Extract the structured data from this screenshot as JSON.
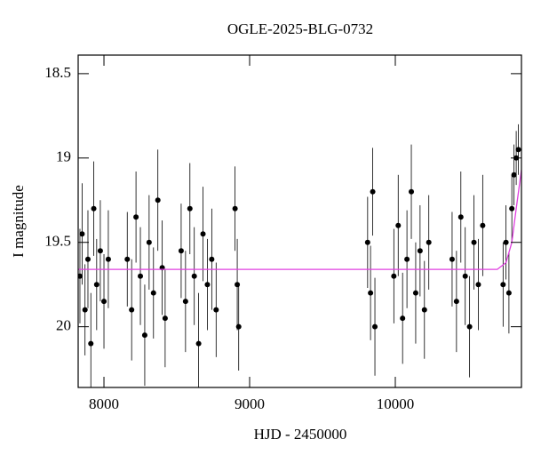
{
  "chart_data": {
    "type": "scatter",
    "title": "OGLE-2025-BLG-0732",
    "x_label": "HJD - 2450000",
    "y_label": "I magnitude",
    "xlim": [
      7823,
      10866
    ],
    "ylim": [
      20.36,
      18.39
    ],
    "xticks": [
      8000,
      9000,
      10000
    ],
    "yticks": [
      18.5,
      19,
      19.5,
      20
    ],
    "series": [
      {
        "type": "scatter",
        "color": "#000000",
        "x": [
          7835,
          7850,
          7870,
          7890,
          7910,
          7930,
          7950,
          7975,
          8000,
          8030,
          8160,
          8190,
          8220,
          8250,
          8280,
          8310,
          8340,
          8370,
          8400,
          8420,
          8530,
          8560,
          8590,
          8620,
          8650,
          8680,
          8710,
          8740,
          8770,
          8900,
          8915,
          8925,
          9810,
          9830,
          9845,
          9860,
          9990,
          10020,
          10050,
          10080,
          10110,
          10140,
          10170,
          10200,
          10230,
          10390,
          10420,
          10450,
          10480,
          10510,
          10540,
          10570,
          10600,
          10740,
          10760,
          10780,
          10800,
          10815,
          10830,
          10845
        ],
        "values": [
          19.7,
          19.45,
          19.9,
          19.6,
          20.1,
          19.3,
          19.75,
          19.55,
          19.85,
          19.6,
          19.6,
          19.9,
          19.35,
          19.7,
          20.05,
          19.5,
          19.8,
          19.25,
          19.65,
          19.95,
          19.55,
          19.85,
          19.3,
          19.7,
          20.1,
          19.45,
          19.75,
          19.6,
          19.9,
          19.3,
          19.75,
          20.0,
          19.5,
          19.8,
          19.2,
          20.0,
          19.7,
          19.4,
          19.95,
          19.6,
          19.2,
          19.8,
          19.55,
          19.9,
          19.5,
          19.6,
          19.85,
          19.35,
          19.7,
          20.0,
          19.5,
          19.75,
          19.4,
          19.75,
          19.5,
          19.8,
          19.3,
          19.1,
          19.0,
          18.95
        ],
        "errors": [
          0.28,
          0.3,
          0.27,
          0.29,
          0.3,
          0.28,
          0.27,
          0.3,
          0.28,
          0.29,
          0.28,
          0.3,
          0.27,
          0.29,
          0.3,
          0.28,
          0.27,
          0.3,
          0.28,
          0.29,
          0.28,
          0.3,
          0.27,
          0.29,
          0.3,
          0.28,
          0.27,
          0.3,
          0.28,
          0.25,
          0.27,
          0.26,
          0.27,
          0.28,
          0.26,
          0.29,
          0.28,
          0.3,
          0.27,
          0.29,
          0.28,
          0.3,
          0.27,
          0.29,
          0.28,
          0.28,
          0.3,
          0.27,
          0.29,
          0.3,
          0.28,
          0.27,
          0.3,
          0.25,
          0.22,
          0.24,
          0.2,
          0.18,
          0.16,
          0.15
        ]
      },
      {
        "type": "line",
        "color": "#e040e0",
        "x": [
          7823,
          10700,
          10760,
          10800,
          10830,
          10866
        ],
        "values": [
          19.66,
          19.66,
          19.62,
          19.5,
          19.3,
          19.07
        ]
      }
    ]
  }
}
